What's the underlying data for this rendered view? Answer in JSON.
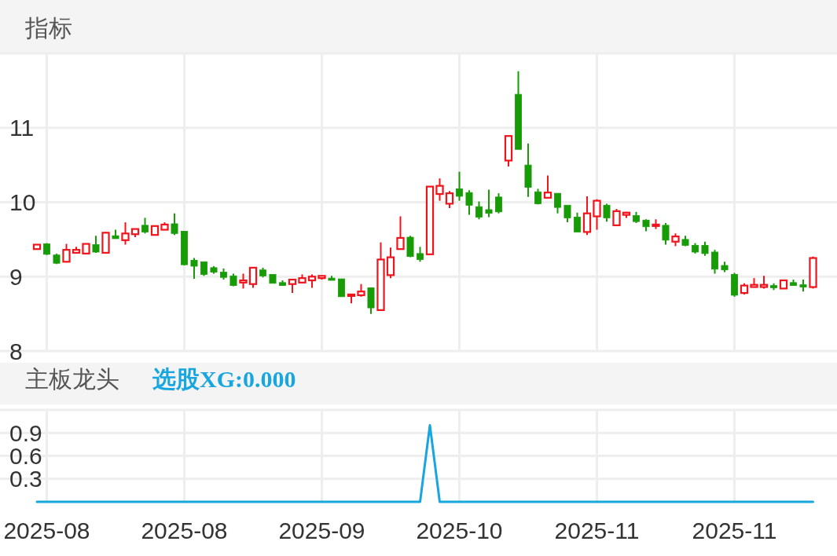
{
  "chart_data": [
    {
      "type": "candlestick",
      "title": "指标",
      "tick_labels": "y",
      "grid": true,
      "categories": [
        null,
        "2025-08",
        null,
        null,
        null,
        null,
        null,
        null,
        null,
        null,
        null,
        null,
        null,
        null,
        null,
        "2025-08",
        null,
        null,
        null,
        null,
        null,
        null,
        null,
        null,
        null,
        null,
        null,
        null,
        null,
        "2025-09",
        null,
        null,
        null,
        null,
        null,
        null,
        null,
        null,
        null,
        null,
        null,
        null,
        null,
        "2025-10",
        null,
        null,
        null,
        null,
        null,
        null,
        null,
        null,
        null,
        null,
        null,
        null,
        null,
        "2025-11",
        null,
        null,
        null,
        null,
        null,
        null,
        null,
        null,
        null,
        null,
        null,
        null,
        null,
        "2025-11",
        null,
        null,
        null,
        null,
        null,
        null,
        null,
        null
      ],
      "ohlc": [
        [
          9.37,
          9.43,
          9.37,
          9.43
        ],
        [
          9.44,
          9.45,
          9.29,
          9.3
        ],
        [
          9.29,
          9.31,
          9.17,
          9.18
        ],
        [
          9.2,
          9.44,
          9.19,
          9.36
        ],
        [
          9.32,
          9.4,
          9.32,
          9.36
        ],
        [
          9.31,
          9.44,
          9.31,
          9.44
        ],
        [
          9.43,
          9.55,
          9.32,
          9.33
        ],
        [
          9.32,
          9.6,
          9.31,
          9.59
        ],
        [
          9.55,
          9.63,
          9.51,
          9.51
        ],
        [
          9.49,
          9.73,
          9.43,
          9.58
        ],
        [
          9.57,
          9.64,
          9.53,
          9.64
        ],
        [
          9.69,
          9.79,
          9.58,
          9.6
        ],
        [
          9.56,
          9.68,
          9.56,
          9.68
        ],
        [
          9.63,
          9.73,
          9.63,
          9.7
        ],
        [
          9.71,
          9.85,
          9.56,
          9.58
        ],
        [
          9.61,
          9.61,
          9.15,
          9.16
        ],
        [
          9.22,
          9.25,
          8.97,
          9.14
        ],
        [
          9.2,
          9.2,
          9.01,
          9.03
        ],
        [
          9.12,
          9.14,
          9.04,
          9.06
        ],
        [
          9.06,
          9.11,
          8.96,
          8.99
        ],
        [
          9.01,
          9.04,
          8.87,
          8.88
        ],
        [
          8.92,
          9.04,
          8.84,
          8.95
        ],
        [
          8.9,
          9.13,
          8.85,
          9.12
        ],
        [
          9.09,
          9.12,
          8.99,
          9.01
        ],
        [
          9.03,
          9.03,
          8.91,
          8.91
        ],
        [
          8.92,
          8.95,
          8.88,
          8.88
        ],
        [
          8.9,
          8.96,
          8.78,
          8.96
        ],
        [
          8.92,
          9.03,
          8.91,
          8.98
        ],
        [
          8.95,
          9.03,
          8.85,
          9.0
        ],
        [
          8.98,
          9.01,
          8.96,
          9.01
        ],
        [
          8.98,
          9.01,
          8.95,
          8.95
        ],
        [
          8.97,
          8.97,
          8.73,
          8.73
        ],
        [
          8.74,
          8.76,
          8.64,
          8.76
        ],
        [
          8.75,
          8.9,
          8.73,
          8.8
        ],
        [
          8.85,
          8.85,
          8.5,
          8.58
        ],
        [
          8.55,
          9.46,
          8.54,
          9.23
        ],
        [
          9.02,
          9.39,
          8.98,
          9.26
        ],
        [
          9.37,
          9.81,
          9.37,
          9.52
        ],
        [
          9.53,
          9.55,
          9.26,
          9.27
        ],
        [
          9.31,
          9.4,
          9.2,
          9.23
        ],
        [
          9.3,
          10.21,
          9.3,
          10.21
        ],
        [
          10.11,
          10.32,
          10.02,
          10.22
        ],
        [
          9.98,
          10.15,
          9.92,
          10.12
        ],
        [
          10.18,
          10.41,
          10.02,
          10.08
        ],
        [
          10.13,
          10.16,
          9.83,
          9.96
        ],
        [
          9.94,
          10.01,
          9.77,
          9.8
        ],
        [
          9.9,
          10.17,
          9.8,
          9.85
        ],
        [
          10.07,
          10.12,
          9.85,
          9.87
        ],
        [
          10.56,
          10.89,
          10.48,
          10.89
        ],
        [
          11.45,
          11.76,
          10.71,
          10.71
        ],
        [
          10.5,
          10.79,
          10.07,
          10.2
        ],
        [
          10.14,
          10.18,
          9.97,
          9.98
        ],
        [
          10.06,
          10.36,
          10.06,
          10.13
        ],
        [
          10.12,
          10.12,
          9.85,
          9.93
        ],
        [
          9.96,
          9.96,
          9.73,
          9.79
        ],
        [
          9.8,
          9.86,
          9.6,
          9.6
        ],
        [
          9.6,
          10.08,
          9.56,
          9.85
        ],
        [
          9.81,
          10.04,
          9.63,
          10.02
        ],
        [
          9.96,
          9.98,
          9.74,
          9.79
        ],
        [
          9.69,
          9.91,
          9.68,
          9.88
        ],
        [
          9.83,
          9.87,
          9.79,
          9.86
        ],
        [
          9.82,
          9.87,
          9.72,
          9.74
        ],
        [
          9.76,
          9.77,
          9.61,
          9.67
        ],
        [
          9.68,
          9.77,
          9.64,
          9.7
        ],
        [
          9.69,
          9.72,
          9.43,
          9.49
        ],
        [
          9.47,
          9.58,
          9.41,
          9.54
        ],
        [
          9.5,
          9.55,
          9.41,
          9.42
        ],
        [
          9.42,
          9.45,
          9.31,
          9.33
        ],
        [
          9.42,
          9.47,
          9.28,
          9.31
        ],
        [
          9.33,
          9.36,
          9.04,
          9.1
        ],
        [
          9.15,
          9.2,
          9.06,
          9.09
        ],
        [
          9.03,
          9.05,
          8.73,
          8.75
        ],
        [
          8.78,
          8.91,
          8.76,
          8.88
        ],
        [
          8.86,
          8.98,
          8.86,
          8.89
        ],
        [
          8.86,
          9.01,
          8.84,
          8.89
        ],
        [
          8.88,
          8.91,
          8.82,
          8.85
        ],
        [
          8.84,
          8.95,
          8.84,
          8.95
        ],
        [
          8.92,
          8.96,
          8.88,
          8.88
        ],
        [
          8.89,
          8.96,
          8.8,
          8.86
        ],
        [
          8.86,
          9.27,
          8.84,
          9.25
        ]
      ],
      "colors": [
        "#f0141c",
        "#179b06",
        "#179b06",
        "#f0141c",
        "#f0141c",
        "#f0141c",
        "#179b06",
        "#f0141c",
        "#179b06",
        "#f0141c",
        "#f0141c",
        "#179b06",
        "#f0141c",
        "#f0141c",
        "#179b06",
        "#179b06",
        "#179b06",
        "#179b06",
        "#179b06",
        "#179b06",
        "#179b06",
        "#f0141c",
        "#f0141c",
        "#179b06",
        "#179b06",
        "#179b06",
        "#f0141c",
        "#f0141c",
        "#f0141c",
        "#f0141c",
        "#179b06",
        "#179b06",
        "#f0141c",
        "#f0141c",
        "#179b06",
        "#f0141c",
        "#f0141c",
        "#f0141c",
        "#179b06",
        "#179b06",
        "#f0141c",
        "#f0141c",
        "#f0141c",
        "#179b06",
        "#179b06",
        "#179b06",
        "#179b06",
        "#179b06",
        "#f0141c",
        "#179b06",
        "#179b06",
        "#179b06",
        "#f0141c",
        "#179b06",
        "#179b06",
        "#179b06",
        "#f0141c",
        "#f0141c",
        "#179b06",
        "#f0141c",
        "#f0141c",
        "#179b06",
        "#179b06",
        "#f0141c",
        "#179b06",
        "#f0141c",
        "#179b06",
        "#179b06",
        "#179b06",
        "#179b06",
        "#179b06",
        "#179b06",
        "#f0141c",
        "#f0141c",
        "#f0141c",
        "#179b06",
        "#f0141c",
        "#179b06",
        "#179b06",
        "#f0141c"
      ],
      "ylim": [
        8,
        12
      ],
      "yticks": [
        8,
        9,
        10,
        11
      ]
    },
    {
      "type": "line",
      "title": "主板龙头",
      "legend": "top left",
      "grid": true,
      "categories": [
        null,
        "2025-08",
        null,
        null,
        null,
        null,
        null,
        null,
        null,
        null,
        null,
        null,
        null,
        null,
        null,
        "2025-08",
        null,
        null,
        null,
        null,
        null,
        null,
        null,
        null,
        null,
        null,
        null,
        null,
        null,
        "2025-09",
        null,
        null,
        null,
        null,
        null,
        null,
        null,
        null,
        null,
        null,
        null,
        null,
        null,
        "2025-10",
        null,
        null,
        null,
        null,
        null,
        null,
        null,
        null,
        null,
        null,
        null,
        null,
        null,
        "2025-11",
        null,
        null,
        null,
        null,
        null,
        null,
        null,
        null,
        null,
        null,
        null,
        null,
        null,
        "2025-11",
        null,
        null,
        null,
        null,
        null,
        null,
        null,
        null
      ],
      "series": [
        {
          "name": "选股XG:0.000",
          "color": "#18a6e0",
          "values": [
            0,
            0,
            0,
            0,
            0,
            0,
            0,
            0,
            0,
            0,
            0,
            0,
            0,
            0,
            0,
            0,
            0,
            0,
            0,
            0,
            0,
            0,
            0,
            0,
            0,
            0,
            0,
            0,
            0,
            0,
            0,
            0,
            0,
            0,
            0,
            0,
            0,
            0,
            0,
            0,
            1,
            0,
            0,
            0,
            0,
            0,
            0,
            0,
            0,
            0,
            0,
            0,
            0,
            0,
            0,
            0,
            0,
            0,
            0,
            0,
            0,
            0,
            0,
            0,
            0,
            0,
            0,
            0,
            0,
            0,
            0,
            0,
            0,
            0,
            0,
            0,
            0,
            0,
            0,
            0
          ]
        }
      ],
      "ylim": [
        0,
        1.2
      ],
      "yticks": [
        0.3,
        0.6,
        0.9
      ]
    }
  ]
}
